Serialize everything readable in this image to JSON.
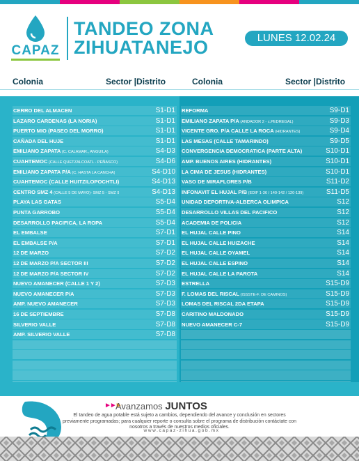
{
  "brand": {
    "name": "CAPAZ"
  },
  "title": {
    "line1": "TANDEO ZONA",
    "line2": "ZIHUATANEJO"
  },
  "date": "LUNES 12.02.24",
  "colors": {
    "accent": "#23a6c1",
    "panel_left": "#2ab3c9",
    "panel_right": "#139fb8",
    "pink": "#e6007e",
    "green": "#8cc63f",
    "orange": "#f7931e"
  },
  "icons": [
    "water-drop-icon",
    "capaz-swirl-icon",
    "double-chevron-icon"
  ],
  "columns": {
    "colonia": "Colonia",
    "sector": "Sector |Distrito"
  },
  "left_rows": [
    {
      "c": "CERRO DEL ALMACEN",
      "s": "S1-D1"
    },
    {
      "c": "LAZARO CARDENAS (LA NORIA)",
      "s": "S1-D1"
    },
    {
      "c": "PUERTO MIO (PASEO DEL MORRO)",
      "s": "S1-D1"
    },
    {
      "c": "CAÑADA DEL HUJE",
      "s": "S1-D1"
    },
    {
      "c": "EMILIANO ZAPATA",
      "n": " (C. CALAMAR., ANGUILA)",
      "s": "S4-D3"
    },
    {
      "c": "CUAHTEMOC",
      "n": " (CALLE QUETZALCOATL - PEÑASCO)",
      "s": "S4-D6"
    },
    {
      "c": "EMILIANO ZAPATA P/A",
      "n": " (C. HASTA LA CANCHA)",
      "s": "S4-D10"
    },
    {
      "c": "CUAHTEMOC (CALLE HUITZILOPOCHTLI)",
      "s": "S4-D13"
    },
    {
      "c": "CENTRO SMZ 4",
      "n": " (CALLE 5 DE MAYO)- SMZ 5 - SMZ 9",
      "s": "S4-D13"
    },
    {
      "c": "PLAYA LAS GATAS",
      "s": "S5-D4"
    },
    {
      "c": "PUNTA GARROBO",
      "s": "S5-D4"
    },
    {
      "c": "DESARROLLO PACIFICA, LA ROPA",
      "s": "S5-D4"
    },
    {
      "c": "EL EMBALSE",
      "s": "S7-D1"
    },
    {
      "c": " EL EMBALSE P/A",
      "s": "S7-D1"
    },
    {
      "c": "12 DE MARZO",
      "s": "S7-D2"
    },
    {
      "c": "12 DE MARZO P/A SECTOR III",
      "s": "S7-D2"
    },
    {
      "c": "12 DE MARZO P/A SECTOR IV",
      "s": "S7-D2"
    },
    {
      "c": "NUEVO AMANECER (CALLE 1 Y 2)",
      "s": "S7-D3"
    },
    {
      "c": "NUEVO AMANECER P/A",
      "s": "S7-D3"
    },
    {
      "c": "AMP. NUEVO AMANECER",
      "s": "S7-D3"
    },
    {
      "c": " 16 DE SEPTIEMBRE",
      "s": "S7-D8"
    },
    {
      "c": "SILVERIO VALLE",
      "s": "S7-D8"
    },
    {
      "c": "AMP. SILVERIO VALLE",
      "s": "S7-D8"
    },
    {
      "c": "",
      "s": ""
    },
    {
      "c": "",
      "s": ""
    },
    {
      "c": "",
      "s": ""
    },
    {
      "c": "",
      "s": ""
    },
    {
      "c": "",
      "s": ""
    }
  ],
  "right_rows": [
    {
      "c": "REFORMA",
      "s": "S9-D1"
    },
    {
      "c": "EMILIANO ZAPATA P/A",
      "n": " (ANDADOR 2 - c.PEDREGAL)",
      "s": "S9-D3"
    },
    {
      "c": "VICENTE GRO. P/A CALLE LA ROCA",
      "n": " (HIDRANTES)",
      "s": "S9-D4"
    },
    {
      "c": " LAS MESAS (CALLE TAMARINDO)",
      "s": "S9-D5"
    },
    {
      "c": "CONVERGENCIA DEMOCRATICA (PARTE ALTA)",
      "s": "S10-D1"
    },
    {
      "c": "AMP. BUENOS AIRES (HIDRANTES)",
      "s": "S10-D1"
    },
    {
      "c": "LA CIMA DE JESUS (HIDRANTES)",
      "s": "S10-D1"
    },
    {
      "c": "VASO DE MIRAFLORES P/B",
      "s": "S11-D2"
    },
    {
      "c": "INFONAVIT EL HUJAL P/B",
      "n": " (EDIF 1-36 / 140-142 / 120-139)",
      "s": "S11-D5"
    },
    {
      "c": "UNIDAD DEPORTIVA-ALBERCA OLIMPICA",
      "s": "S12"
    },
    {
      "c": "DESARROLLO VILLAS DEL PACIFICO",
      "s": "S12"
    },
    {
      "c": "ACADEMIA DE POLICIA",
      "s": "S12"
    },
    {
      "c": "EL HUJAL CALLE PINO",
      "s": "S14"
    },
    {
      "c": "EL HUJAL CALLE HUIZACHE",
      "s": "S14"
    },
    {
      "c": "EL HUJAL CALLE OYAMEL",
      "s": "S14"
    },
    {
      "c": "EL HUJAL CALLE ESPINO",
      "s": "S14"
    },
    {
      "c": "EL HUJAL CALLE LA PAROTA",
      "s": "S14"
    },
    {
      "c": "ESTRELLA",
      "s": "S15-D9"
    },
    {
      "c": "F. LOMAS DEL RISCAL",
      "n": " (ISSSTE-F. DE CAMINOS)",
      "s": "S15-D9"
    },
    {
      "c": "LOMAS DEL RISCAL 2DA ETAPA",
      "s": "S15-D9"
    },
    {
      "c": "CARITINO MALDONADO",
      "s": "S15-D9"
    },
    {
      "c": "NUEVO AMANECER C-7",
      "s": "S15-D9"
    },
    {
      "c": "",
      "s": ""
    },
    {
      "c": "",
      "s": ""
    },
    {
      "c": "",
      "s": ""
    },
    {
      "c": "",
      "s": ""
    },
    {
      "c": "",
      "s": ""
    },
    {
      "c": "",
      "s": ""
    }
  ],
  "footer": {
    "slogan_a": "Avanzamos",
    "slogan_b": "JUNTOS",
    "disclaimer": "El tandeo de agua potable está sujeto a cambios, dependiendo del avance y conclusión en sectores previamente programadas; para cualquier reporte o consulta sobre el programa de distribución contáctate con nosotros a través de nuestros medios oficiales.",
    "website": "www.capaz-zihua.gob.mx"
  }
}
